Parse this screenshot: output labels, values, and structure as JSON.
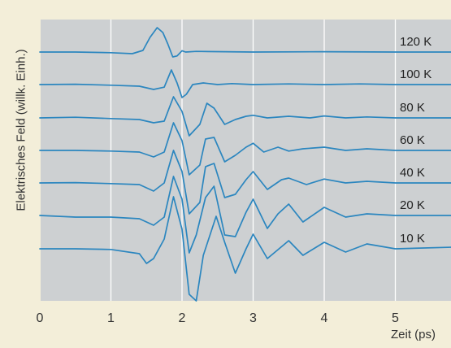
{
  "chart_data": {
    "type": "line",
    "title": "",
    "xlabel": "Zeit (ps)",
    "ylabel": "Elektrisches Feld (willk. Einh.)",
    "xlim": [
      0,
      5.8
    ],
    "xticks": [
      "0",
      "1",
      "2",
      "3",
      "4",
      "5"
    ],
    "grid": true,
    "legend": "right (labels on curves)",
    "colors": {
      "plot_background": "#cdd0d2",
      "figure_background": "#f3eed9",
      "line": "#2b86bf",
      "grid": "#ffffff"
    },
    "series": [
      {
        "name": "120 K",
        "x": [
          0.0,
          0.5,
          1.0,
          1.3,
          1.45,
          1.55,
          1.65,
          1.73,
          1.8,
          1.87,
          1.93,
          2.0,
          2.05,
          2.2,
          3.0,
          4.0,
          5.0,
          5.8
        ],
        "y": [
          0.0,
          0.0,
          -0.02,
          -0.05,
          0.05,
          0.45,
          0.75,
          0.6,
          0.25,
          -0.15,
          -0.12,
          0.04,
          0.0,
          0.02,
          0.0,
          0.01,
          0.0,
          0.0
        ]
      },
      {
        "name": "100 K",
        "x": [
          0.0,
          0.5,
          1.0,
          1.4,
          1.6,
          1.75,
          1.85,
          1.93,
          2.0,
          2.06,
          2.15,
          2.3,
          2.5,
          2.7,
          3.0,
          3.5,
          4.0,
          4.5,
          5.0,
          5.8
        ],
        "y": [
          0.0,
          0.01,
          -0.02,
          -0.05,
          -0.15,
          -0.08,
          0.45,
          0.05,
          -0.4,
          -0.3,
          0.0,
          0.05,
          0.0,
          0.03,
          0.0,
          0.02,
          0.0,
          0.02,
          0.0,
          0.0
        ]
      },
      {
        "name": "80 K",
        "x": [
          0.0,
          0.5,
          1.0,
          1.4,
          1.6,
          1.75,
          1.88,
          2.0,
          2.1,
          2.25,
          2.35,
          2.45,
          2.6,
          2.75,
          2.9,
          3.0,
          3.2,
          3.5,
          3.8,
          4.0,
          4.3,
          4.6,
          5.0,
          5.8
        ],
        "y": [
          0.0,
          0.02,
          -0.02,
          -0.05,
          -0.15,
          -0.1,
          0.65,
          0.2,
          -0.55,
          -0.2,
          0.45,
          0.3,
          -0.2,
          -0.05,
          0.05,
          0.08,
          0.0,
          0.05,
          0.0,
          0.06,
          0.0,
          0.03,
          0.0,
          0.0
        ]
      },
      {
        "name": "60 K",
        "x": [
          0.0,
          0.5,
          1.0,
          1.4,
          1.6,
          1.75,
          1.88,
          2.0,
          2.1,
          2.25,
          2.33,
          2.45,
          2.6,
          2.75,
          2.9,
          3.0,
          3.15,
          3.35,
          3.5,
          3.7,
          4.0,
          4.3,
          4.6,
          5.0,
          5.8
        ],
        "y": [
          0.0,
          0.0,
          -0.02,
          -0.05,
          -0.2,
          -0.05,
          0.85,
          0.3,
          -0.75,
          -0.45,
          0.35,
          0.4,
          -0.35,
          -0.15,
          0.1,
          0.22,
          -0.05,
          0.1,
          -0.02,
          0.05,
          0.1,
          0.0,
          0.05,
          0.0,
          0.0
        ]
      },
      {
        "name": "40 K",
        "x": [
          0.0,
          0.5,
          1.0,
          1.4,
          1.6,
          1.75,
          1.88,
          2.0,
          2.1,
          2.25,
          2.33,
          2.45,
          2.6,
          2.75,
          2.9,
          3.0,
          3.2,
          3.4,
          3.5,
          3.75,
          4.0,
          4.3,
          4.6,
          5.0,
          5.8
        ],
        "y": [
          0.0,
          0.01,
          -0.02,
          -0.05,
          -0.25,
          0.0,
          1.0,
          0.35,
          -0.95,
          -0.6,
          0.5,
          0.6,
          -0.45,
          -0.35,
          0.1,
          0.35,
          -0.2,
          0.1,
          0.15,
          -0.05,
          0.12,
          0.0,
          0.05,
          0.0,
          0.0
        ]
      },
      {
        "name": "20 K",
        "x": [
          0.0,
          0.5,
          1.0,
          1.4,
          1.6,
          1.75,
          1.88,
          2.0,
          2.1,
          2.2,
          2.33,
          2.45,
          2.6,
          2.75,
          2.9,
          3.0,
          3.2,
          3.35,
          3.5,
          3.7,
          4.0,
          4.3,
          4.6,
          5.0,
          5.8
        ],
        "y": [
          0.0,
          -0.05,
          -0.05,
          -0.1,
          -0.3,
          -0.05,
          1.2,
          0.5,
          -1.15,
          -0.6,
          0.55,
          0.9,
          -0.6,
          -0.65,
          0.1,
          0.5,
          -0.4,
          0.05,
          0.35,
          -0.2,
          0.25,
          -0.05,
          0.05,
          0.0,
          0.0
        ]
      },
      {
        "name": "10 K",
        "x": [
          0.0,
          0.5,
          1.0,
          1.4,
          1.5,
          1.6,
          1.75,
          1.88,
          2.0,
          2.1,
          2.2,
          2.3,
          2.48,
          2.6,
          2.75,
          2.9,
          3.0,
          3.2,
          3.5,
          3.7,
          4.0,
          4.3,
          4.6,
          5.0,
          5.8
        ],
        "y": [
          0.0,
          0.0,
          -0.02,
          -0.15,
          -0.45,
          -0.3,
          0.3,
          1.6,
          0.6,
          -1.4,
          -1.6,
          -0.2,
          1.0,
          0.2,
          -0.75,
          0.0,
          0.45,
          -0.3,
          0.25,
          -0.2,
          0.2,
          -0.1,
          0.15,
          0.0,
          0.05
        ]
      }
    ]
  }
}
